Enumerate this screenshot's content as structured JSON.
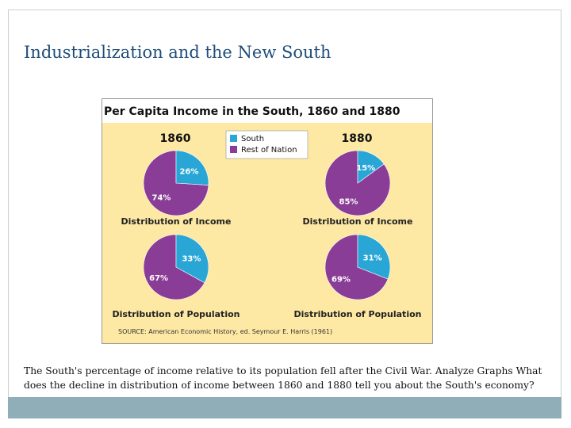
{
  "slide": {
    "title": "Industrialization and the New South",
    "caption": "The South's percentage of income relative to its population fell after the Civil War. Analyze Graphs What does the decline in distribution of income between 1860 and 1880 tell you about the South's economy?"
  },
  "colors": {
    "title": "#1f4d7a",
    "south": "#29a6d6",
    "rest": "#8a3d96",
    "panel": "#fde8a4",
    "footer": "#90aeb8"
  },
  "chart_data": {
    "type": "pie",
    "title": "Per Capita Income in the South, 1860 and 1880",
    "legend": [
      "South",
      "Rest of Nation"
    ],
    "year_labels": [
      "1860",
      "1880"
    ],
    "source": "SOURCE: American Economic History, ed. Seymour E. Harris (1961)",
    "pies": [
      {
        "year": "1860",
        "caption": "Distribution of Income",
        "south": 26,
        "rest": 74,
        "south_label": "26%",
        "rest_label": "74%"
      },
      {
        "year": "1880",
        "caption": "Distribution of Income",
        "south": 15,
        "rest": 85,
        "south_label": "15%",
        "rest_label": "85%"
      },
      {
        "year": "1860",
        "caption": "Distribution of Population",
        "south": 33,
        "rest": 67,
        "south_label": "33%",
        "rest_label": "67%"
      },
      {
        "year": "1880",
        "caption": "Distribution of Population",
        "south": 31,
        "rest": 69,
        "south_label": "31%",
        "rest_label": "69%"
      }
    ]
  }
}
